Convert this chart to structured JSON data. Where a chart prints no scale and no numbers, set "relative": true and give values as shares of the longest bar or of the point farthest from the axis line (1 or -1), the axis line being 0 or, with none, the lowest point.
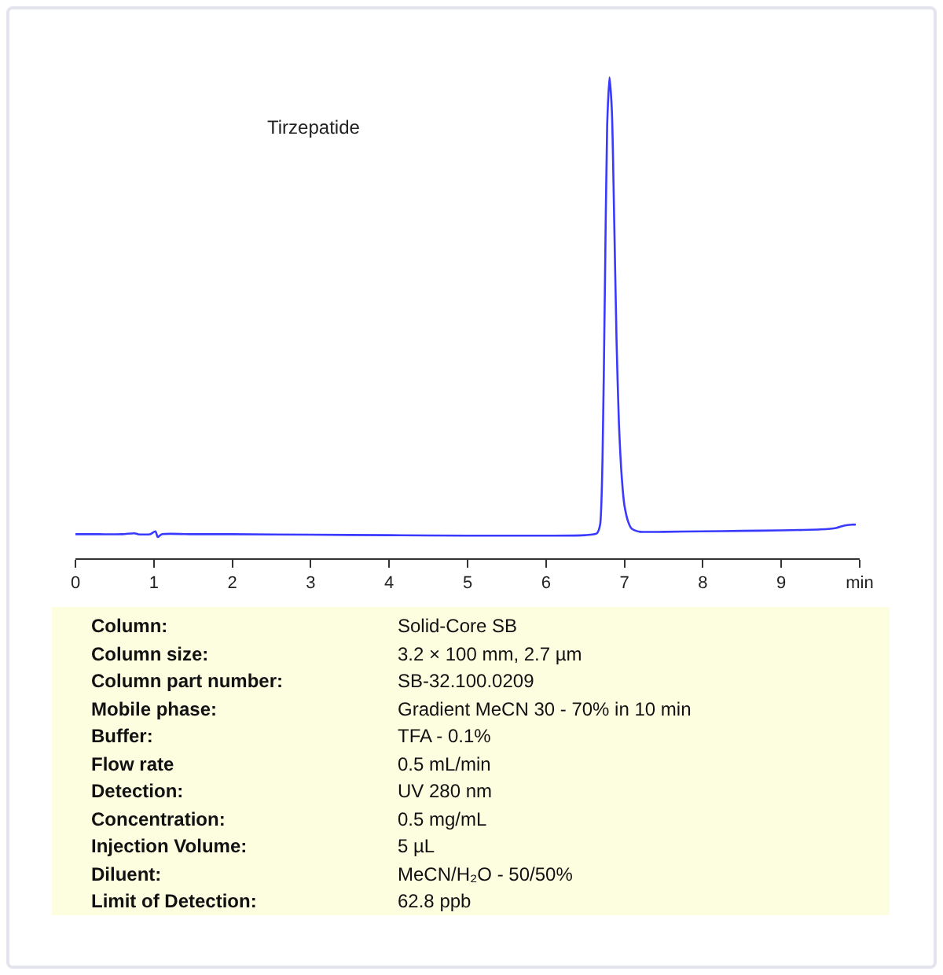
{
  "chart_data": {
    "type": "line",
    "relative": true,
    "x": [
      0,
      0.3,
      0.6,
      0.75,
      0.8,
      0.95,
      1.02,
      1.05,
      1.1,
      1.5,
      2,
      3,
      4,
      5,
      6,
      6.5,
      6.65,
      6.69,
      6.72,
      6.75,
      6.78,
      6.81,
      6.84,
      6.87,
      6.9,
      6.93,
      6.97,
      7.0,
      7.05,
      7.09,
      7.15,
      7.2,
      7.5,
      8,
      8.5,
      9,
      9.5,
      9.7,
      9.8,
      9.9,
      9.95
    ],
    "series": [
      {
        "color": "#3a3aff",
        "values": [
          0.05,
          0.05,
          0.05,
          0.052,
          0.05,
          0.05,
          0.056,
          0.044,
          0.05,
          0.05,
          0.05,
          0.049,
          0.048,
          0.047,
          0.047,
          0.048,
          0.052,
          0.07,
          0.2,
          0.55,
          0.9,
          1,
          0.93,
          0.7,
          0.45,
          0.28,
          0.16,
          0.11,
          0.075,
          0.062,
          0.057,
          0.055,
          0.055,
          0.056,
          0.057,
          0.058,
          0.06,
          0.063,
          0.068,
          0.07,
          0.07
        ]
      }
    ],
    "xlim": [
      0,
      10
    ],
    "xticks": [
      0,
      1,
      2,
      3,
      4,
      5,
      6,
      7,
      8,
      9,
      {
        "value": 10,
        "label": "min"
      }
    ],
    "tick_labels": "x",
    "grid": false,
    "marker": "none",
    "line_style": "solid",
    "annotations": [
      "Tirzepatide",
      "Column:",
      "Solid-Core SB",
      "Column size:",
      "3.2 × 100 mm, 2.7 µm",
      "Column part number:",
      "SB-32.100.0209",
      "Mobile phase:",
      "Gradient MeCN 30 - 70% in 10 min",
      "Buffer:",
      "TFA - 0.1%",
      "Flow rate",
      "0.5 mL/min",
      "Detection:",
      "UV 280 nm",
      "Concentration:",
      "0.5 mg/mL",
      "Injection Volume:",
      "5 µL",
      "Diluent:",
      "MeCN/H₂O - 50/50%",
      "Limit of Detection:",
      "62.8 ppb"
    ]
  }
}
